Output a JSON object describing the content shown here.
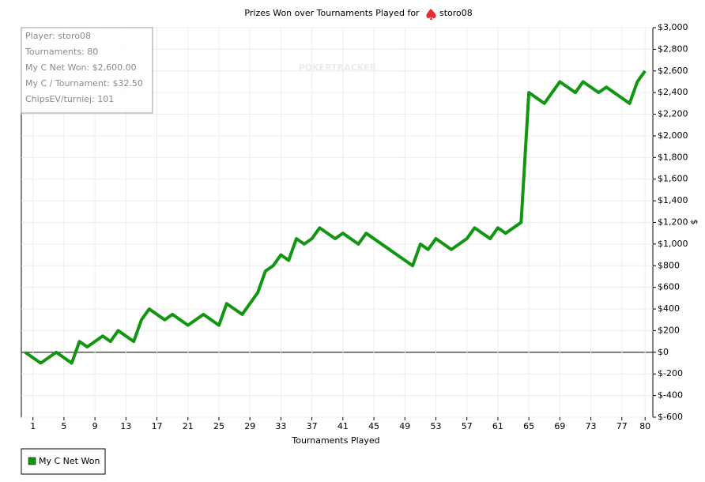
{
  "chart_data": {
    "type": "line",
    "title": "Prizes Won over Tournaments Played for",
    "player": "storo08",
    "watermark": "POKERTRACKER",
    "info": [
      "Player: storo08",
      "Tournaments: 80",
      "My C Net Won: $2,600.00",
      "My C / Tournament: $32.50",
      "ChipsEV/turniej: 101"
    ],
    "x_label": "Tournaments Played",
    "y_label": "$",
    "x": [
      0,
      2,
      4,
      6,
      7,
      8,
      10,
      11,
      12,
      14,
      15,
      16,
      18,
      19,
      21,
      23,
      25,
      26,
      28,
      30,
      31,
      32,
      33,
      34,
      35,
      36,
      37,
      38,
      40,
      41,
      43,
      44,
      50,
      51,
      52,
      53,
      55,
      57,
      58,
      60,
      61,
      62,
      64,
      65,
      67,
      69,
      71,
      72,
      74,
      75,
      78,
      79,
      80
    ],
    "series": [
      {
        "name": "My C Net Won",
        "color": "#109610",
        "values": [
          0,
          -100,
          0,
          -100,
          100,
          50,
          150,
          100,
          200,
          100,
          300,
          400,
          300,
          350,
          250,
          350,
          250,
          450,
          350,
          550,
          750,
          800,
          900,
          850,
          1050,
          1000,
          1050,
          1150,
          1050,
          1100,
          1000,
          1100,
          800,
          1000,
          950,
          1050,
          950,
          1050,
          1150,
          1050,
          1150,
          1100,
          1200,
          2400,
          2300,
          2500,
          2400,
          2500,
          2400,
          2450,
          2300,
          2500,
          2600
        ]
      }
    ],
    "xlim": [
      -0.5,
      81
    ],
    "xticks": [
      1,
      5,
      9,
      13,
      17,
      21,
      25,
      29,
      33,
      37,
      41,
      45,
      49,
      53,
      57,
      61,
      65,
      69,
      73,
      77,
      80
    ],
    "ylim": [
      -600,
      3000
    ],
    "yticks": [
      {
        "value": -600,
        "label": "$-600"
      },
      {
        "value": -400,
        "label": "$-400"
      },
      {
        "value": -200,
        "label": "$-200"
      },
      {
        "value": 0,
        "label": "$0"
      },
      {
        "value": 200,
        "label": "$200"
      },
      {
        "value": 400,
        "label": "$400"
      },
      {
        "value": 600,
        "label": "$600"
      },
      {
        "value": 800,
        "label": "$800"
      },
      {
        "value": 1000,
        "label": "$1,000"
      },
      {
        "value": 1200,
        "label": "$1,200"
      },
      {
        "value": 1400,
        "label": "$1,400"
      },
      {
        "value": 1600,
        "label": "$1,600"
      },
      {
        "value": 1800,
        "label": "$1,800"
      },
      {
        "value": 2000,
        "label": "$2,000"
      },
      {
        "value": 2200,
        "label": "$2,200"
      },
      {
        "value": 2400,
        "label": "$2,400"
      },
      {
        "value": 2600,
        "label": "$2,600"
      },
      {
        "value": 2800,
        "label": "$2,800"
      },
      {
        "value": 3000,
        "label": "$3,000"
      }
    ],
    "grid": true
  }
}
